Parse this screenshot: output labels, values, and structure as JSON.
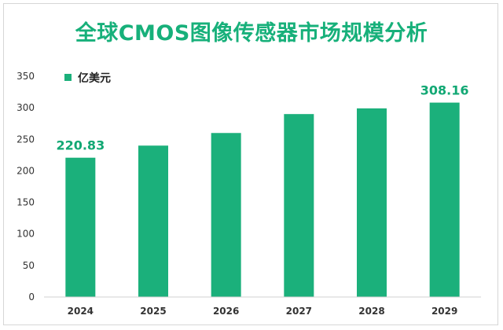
{
  "chart_data": {
    "type": "bar",
    "title": "全球CMOS图像传感器市场规模分析",
    "series": [
      {
        "name": "亿美元",
        "values": [
          220.83,
          240,
          260,
          290,
          299,
          308.16
        ]
      }
    ],
    "categories": [
      "2024",
      "2025",
      "2026",
      "2027",
      "2028",
      "2029"
    ],
    "data_labels": [
      "220.83",
      "",
      "",
      "",
      "",
      "308.16"
    ],
    "yticks": [
      "0",
      "50",
      "100",
      "150",
      "200",
      "250",
      "300",
      "350"
    ],
    "ylim": [
      0,
      350
    ],
    "grid": false,
    "legend_position": "top-left",
    "colors": {
      "bar": "#1bb07b",
      "label": "#12a874",
      "title": "#17b07a"
    }
  }
}
